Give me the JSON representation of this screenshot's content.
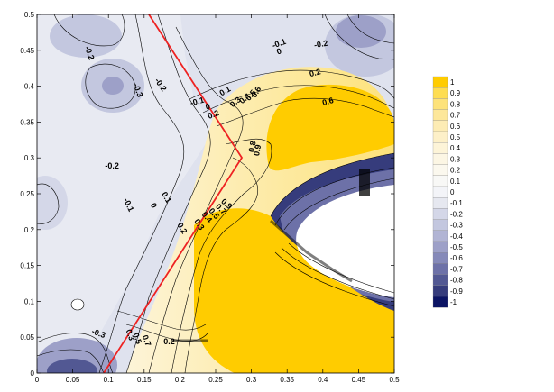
{
  "chart_data": {
    "type": "contour",
    "title": "",
    "xlabel": "",
    "ylabel": "",
    "xlim": [
      0,
      0.5
    ],
    "ylim": [
      0,
      0.5
    ],
    "x_ticks": [
      "0",
      "0.05",
      "0.1",
      "0.15",
      "0.2",
      "0.25",
      "0.3",
      "0.35",
      "0.4",
      "0.45",
      "0.5"
    ],
    "y_ticks": [
      "0",
      "0.05",
      "0.1",
      "0.15",
      "0.2",
      "0.25",
      "0.3",
      "0.35",
      "0.4",
      "0.45",
      "0.5"
    ],
    "colorbar": {
      "levels": [
        "1",
        "0.9",
        "0.8",
        "0.7",
        "0.6",
        "0.5",
        "0.4",
        "0.3",
        "0.2",
        "0.1",
        "0",
        "-0.1",
        "-0.2",
        "-0.3",
        "-0.4",
        "-0.5",
        "-0.6",
        "-0.7",
        "-0.8",
        "-0.9",
        "-1"
      ],
      "colors": [
        "#ffcc00",
        "#fedd52",
        "#fde27a",
        "#fde79a",
        "#fdecb4",
        "#fdf0c8",
        "#fdf4d8",
        "#fcf6e4",
        "#fbf8ee",
        "#f8f8f6",
        "#f3f4f8",
        "#e6e8f0",
        "#d4d7e8",
        "#c3c7df",
        "#b1b4d4",
        "#9da0c8",
        "#8589b9",
        "#6d71a8",
        "#525893",
        "#363c7c",
        "#0c1464"
      ]
    },
    "contour_labels": [
      {
        "text": "-0.2",
        "x": 0.07,
        "y": 0.445,
        "rotate": -70
      },
      {
        "text": "-0.3",
        "x": 0.138,
        "y": 0.393,
        "rotate": -70
      },
      {
        "text": "-0.2",
        "x": 0.17,
        "y": 0.4,
        "rotate": -55
      },
      {
        "text": "-0.2",
        "x": 0.105,
        "y": 0.285,
        "rotate": 0
      },
      {
        "text": "-0.1",
        "x": 0.34,
        "y": 0.456,
        "rotate": 20
      },
      {
        "text": "0",
        "x": 0.34,
        "y": 0.445,
        "rotate": 20
      },
      {
        "text": "-0.2",
        "x": 0.398,
        "y": 0.455,
        "rotate": 10
      },
      {
        "text": "0.2",
        "x": 0.39,
        "y": 0.415,
        "rotate": 15
      },
      {
        "text": "0.6",
        "x": 0.408,
        "y": 0.375,
        "rotate": 15
      },
      {
        "text": "-0.1",
        "x": 0.225,
        "y": 0.375,
        "rotate": 15
      },
      {
        "text": "0",
        "x": 0.24,
        "y": 0.368,
        "rotate": 15
      },
      {
        "text": "0.1",
        "x": 0.265,
        "y": 0.39,
        "rotate": 30
      },
      {
        "text": "0.2",
        "x": 0.248,
        "y": 0.357,
        "rotate": 20
      },
      {
        "text": "0.3",
        "x": 0.28,
        "y": 0.375,
        "rotate": 40
      },
      {
        "text": "0.4",
        "x": 0.293,
        "y": 0.38,
        "rotate": 40
      },
      {
        "text": "0.5",
        "x": 0.302,
        "y": 0.385,
        "rotate": 50
      },
      {
        "text": "0.6",
        "x": 0.31,
        "y": 0.39,
        "rotate": 60
      },
      {
        "text": "0.8",
        "x": 0.305,
        "y": 0.315,
        "rotate": 80
      },
      {
        "text": "0.9",
        "x": 0.312,
        "y": 0.31,
        "rotate": 80
      },
      {
        "text": "-0.1",
        "x": 0.125,
        "y": 0.233,
        "rotate": -65
      },
      {
        "text": "0",
        "x": 0.16,
        "y": 0.232,
        "rotate": -65
      },
      {
        "text": "0.1",
        "x": 0.178,
        "y": 0.243,
        "rotate": -60
      },
      {
        "text": "0.2",
        "x": 0.2,
        "y": 0.2,
        "rotate": -60
      },
      {
        "text": "0.3",
        "x": 0.224,
        "y": 0.205,
        "rotate": -55
      },
      {
        "text": "0.4",
        "x": 0.235,
        "y": 0.215,
        "rotate": -50
      },
      {
        "text": "0.5",
        "x": 0.245,
        "y": 0.22,
        "rotate": -50
      },
      {
        "text": "0.7",
        "x": 0.255,
        "y": 0.226,
        "rotate": -45
      },
      {
        "text": "0.9",
        "x": 0.263,
        "y": 0.233,
        "rotate": -40
      },
      {
        "text": "-0.3",
        "x": 0.085,
        "y": 0.052,
        "rotate": -20
      },
      {
        "text": "0.3",
        "x": 0.127,
        "y": 0.052,
        "rotate": -70
      },
      {
        "text": "0.5",
        "x": 0.137,
        "y": 0.047,
        "rotate": -70
      },
      {
        "text": "0.7",
        "x": 0.15,
        "y": 0.044,
        "rotate": -70
      },
      {
        "text": "0.2",
        "x": 0.185,
        "y": 0.04,
        "rotate": 0
      }
    ]
  }
}
